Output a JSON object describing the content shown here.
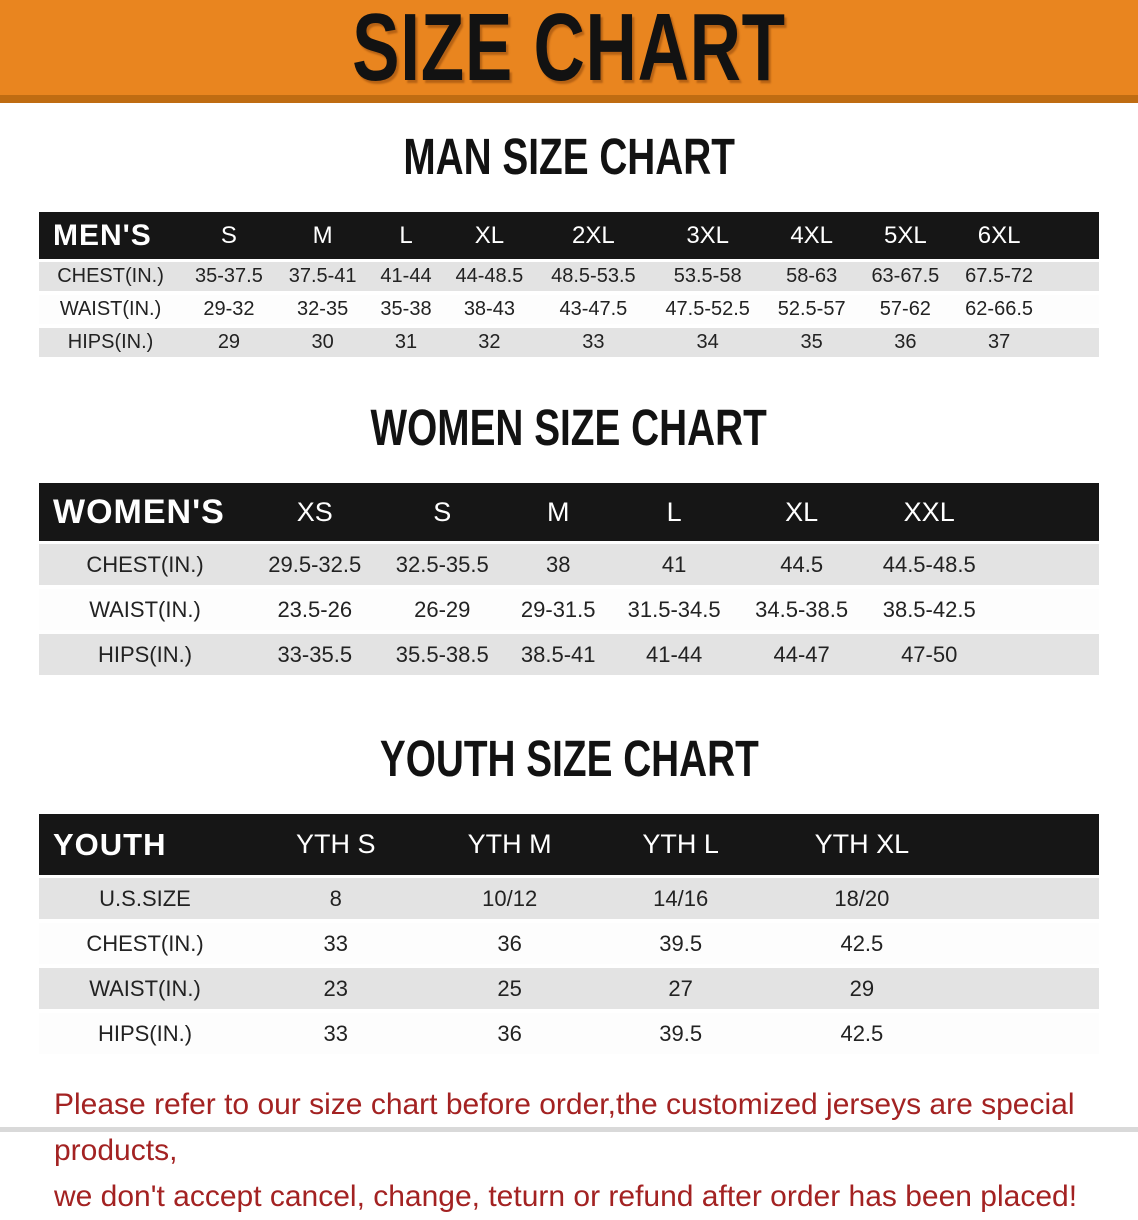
{
  "banner": {
    "title": "SIZE CHART"
  },
  "colors": {
    "banner_bg": "#E9851F",
    "banner_strip": "#BF6C12",
    "table_header_bg": "#161616",
    "row_gray": "#E3E3E3",
    "disclaimer_red": "#A32222"
  },
  "sections": [
    {
      "heading": "MAN SIZE CHART",
      "corner_label": "MEN'S",
      "sizes": [
        "S",
        "M",
        "L",
        "XL",
        "2XL",
        "3XL",
        "4XL",
        "5XL",
        "6XL"
      ],
      "rows": [
        {
          "label": "CHEST(IN.)",
          "values": [
            "35-37.5",
            "37.5-41",
            "41-44",
            "44-48.5",
            "48.5-53.5",
            "53.5-58",
            "58-63",
            "63-67.5",
            "67.5-72"
          ]
        },
        {
          "label": "WAIST(IN.)",
          "values": [
            "29-32",
            "32-35",
            "35-38",
            "38-43",
            "43-47.5",
            "47.5-52.5",
            "52.5-57",
            "57-62",
            "62-66.5"
          ]
        },
        {
          "label": "HIPS(IN.)",
          "values": [
            "29",
            "30",
            "31",
            "32",
            "33",
            "34",
            "35",
            "36",
            "37"
          ]
        }
      ]
    },
    {
      "heading": "WOMEN SIZE CHART",
      "corner_label": "WOMEN'S",
      "sizes": [
        "XS",
        "S",
        "M",
        "L",
        "XL",
        "XXL"
      ],
      "rows": [
        {
          "label": "CHEST(IN.)",
          "values": [
            "29.5-32.5",
            "32.5-35.5",
            "38",
            "41",
            "44.5",
            "44.5-48.5"
          ]
        },
        {
          "label": "WAIST(IN.)",
          "values": [
            "23.5-26",
            "26-29",
            "29-31.5",
            "31.5-34.5",
            "34.5-38.5",
            "38.5-42.5"
          ]
        },
        {
          "label": "HIPS(IN.)",
          "values": [
            "33-35.5",
            "35.5-38.5",
            "38.5-41",
            "41-44",
            "44-47",
            "47-50"
          ]
        }
      ]
    },
    {
      "heading": "YOUTH SIZE CHART",
      "corner_label": "YOUTH",
      "sizes": [
        "YTH S",
        "YTH M",
        "YTH L",
        "YTH XL"
      ],
      "rows": [
        {
          "label": "U.S.SIZE",
          "values": [
            "8",
            "10/12",
            "14/16",
            "18/20"
          ]
        },
        {
          "label": "CHEST(IN.)",
          "values": [
            "33",
            "36",
            "39.5",
            "42.5"
          ]
        },
        {
          "label": "WAIST(IN.)",
          "values": [
            "23",
            "25",
            "27",
            "29"
          ]
        },
        {
          "label": "HIPS(IN.)",
          "values": [
            "33",
            "36",
            "39.5",
            "42.5"
          ]
        }
      ]
    }
  ],
  "footer": {
    "line1": "Please refer to our size chart before order,the customized jerseys are special products,",
    "line2": "we don't accept cancel, change, teturn or refund after order has been placed!"
  }
}
